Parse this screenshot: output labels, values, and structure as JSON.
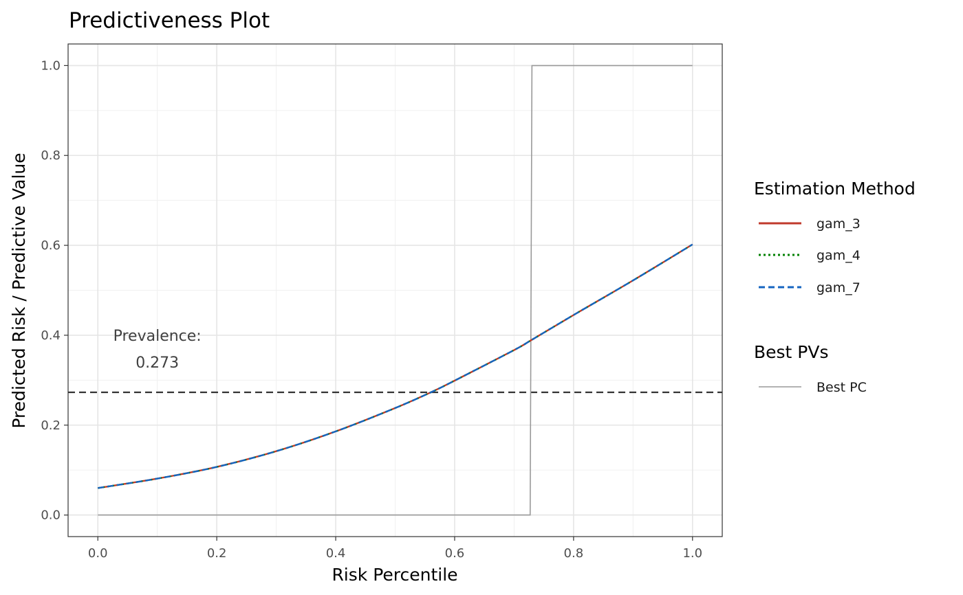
{
  "chart_data": {
    "type": "line",
    "title": "Predictiveness Plot",
    "xlabel": "Risk Percentile",
    "ylabel": "Predicted Risk / Predictive Value",
    "xlim": [
      -0.05,
      1.05
    ],
    "ylim": [
      -0.048,
      1.048
    ],
    "x_ticks": [
      0.0,
      0.2,
      0.4,
      0.6,
      0.8,
      1.0
    ],
    "y_ticks": [
      0.0,
      0.2,
      0.4,
      0.6,
      0.8,
      1.0
    ],
    "x_tick_labels": [
      "0.0",
      "0.2",
      "0.4",
      "0.6",
      "0.8",
      "1.0"
    ],
    "y_tick_labels": [
      "0.0",
      "0.2",
      "0.4",
      "0.6",
      "0.8",
      "1.0"
    ],
    "grid": true,
    "legend_position": "right",
    "legends": [
      {
        "title": "Estimation Method",
        "entries": [
          {
            "label": "gam_3",
            "color": "#c0392b",
            "dash": "solid"
          },
          {
            "label": "gam_4",
            "color": "#008000",
            "dash": "dotted"
          },
          {
            "label": "gam_7",
            "color": "#1565c0",
            "dash": "dashed"
          }
        ]
      },
      {
        "title": "Best PVs",
        "entries": [
          {
            "label": "Best PC",
            "color": "#999999",
            "dash": "solid"
          }
        ]
      }
    ],
    "annotation": {
      "line1": "Prevalence:",
      "line2": "0.273",
      "x": 0.1,
      "y1": 0.4,
      "y2": 0.34
    },
    "prevalence": 0.273,
    "x": [
      0.0,
      0.1,
      0.2,
      0.3,
      0.4,
      0.5,
      0.56,
      0.6,
      0.7,
      0.73,
      0.8,
      0.9,
      1.0
    ],
    "series": [
      {
        "name": "gam_3",
        "color": "#c0392b",
        "dash": "solid",
        "values": [
          0.06,
          0.081,
          0.107,
          0.142,
          0.186,
          0.238,
          0.273,
          0.299,
          0.367,
          0.39,
          0.445,
          0.522,
          0.602
        ]
      },
      {
        "name": "gam_4",
        "color": "#008000",
        "dash": "dotted",
        "values": [
          0.06,
          0.081,
          0.107,
          0.142,
          0.186,
          0.238,
          0.273,
          0.299,
          0.367,
          0.39,
          0.445,
          0.522,
          0.602
        ]
      },
      {
        "name": "gam_7",
        "color": "#1565c0",
        "dash": "dashed",
        "values": [
          0.06,
          0.081,
          0.107,
          0.142,
          0.186,
          0.238,
          0.273,
          0.299,
          0.367,
          0.39,
          0.445,
          0.522,
          0.602
        ]
      }
    ],
    "best_pc": {
      "name": "Best PC",
      "color": "#999999",
      "points": [
        [
          0.0,
          0.0
        ],
        [
          0.727,
          0.0
        ],
        [
          0.73,
          1.0
        ],
        [
          1.0,
          1.0
        ]
      ]
    }
  }
}
